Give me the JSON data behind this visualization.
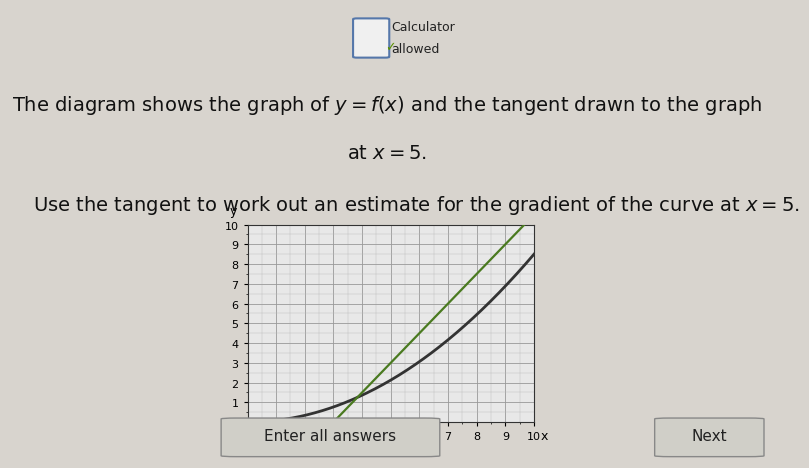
{
  "title_line1": "The diagram shows the graph of $y = f(x)$ and the tangent drawn to the graph",
  "title_line2": "at $x = 5$.",
  "subtitle": "Use the tangent to work out an estimate for the gradient of the curve at $x = 5$.",
  "calc_text1": "Calculator",
  "calc_text2": "allowed",
  "xlabel": "x",
  "ylabel": "y",
  "xmin": 0,
  "xmax": 10,
  "ymin": 0,
  "ymax": 10,
  "bg_color": "#d8d4ce",
  "plot_bg": "#e8e8e8",
  "text_color": "#111111",
  "curve_color": "#333333",
  "tangent_color": "#4a7a20",
  "grid_color": "#999999",
  "grid_minor_color": "#bbbbbb",
  "curve_lw": 2.0,
  "tangent_lw": 1.6,
  "font_size_title": 14,
  "font_size_subtitle": 14,
  "font_size_calc": 9,
  "footer_text": "Enter all answers",
  "next_text": "Next",
  "curve_power": 2.0,
  "curve_scale": 0.085,
  "tangent_slope": 1.5,
  "tangent_intercept": -4.5
}
